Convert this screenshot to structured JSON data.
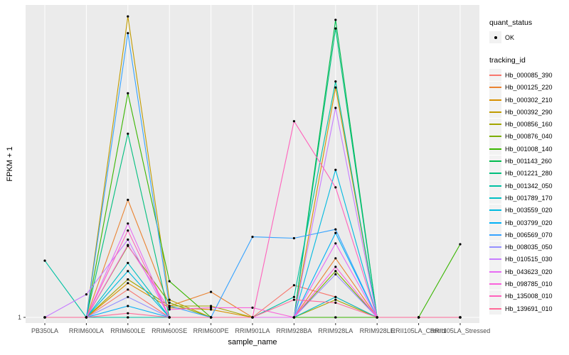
{
  "figure": {
    "y_axis": {
      "title": "FPKM + 1",
      "tick_labels": [
        "1"
      ]
    },
    "x_axis": {
      "title": "sample_name"
    },
    "legend": {
      "quant_title": "quant_status",
      "quant_items": [
        {
          "label": "OK"
        }
      ],
      "tracking_title": "tracking_id"
    },
    "colors": {
      "panel_bg": "#EBEBEB",
      "gridline": "#FFFFFF",
      "tick_mark": "#333333",
      "tick_text": "#4D4D4D",
      "legend_key_bg": "#F2F2F2",
      "point": "#000000"
    }
  },
  "chart_data": {
    "type": "line",
    "title": "",
    "xlabel": "sample_name",
    "ylabel": "FPKM + 1",
    "y_scale": "log10",
    "ylim": [
      1,
      1100
    ],
    "grid": "vertical-major-and-baseline",
    "legend_position": "right",
    "marker": "small-black-point",
    "categories": [
      "PB350LA",
      "RRIM600LA",
      "RRIM600LE",
      "RRIM600SE",
      "RRIM600PE",
      "RRIM901LA",
      "RRIM928BA",
      "RRIM928LA",
      "RRIM928LE",
      "RRII105LA_Control",
      "RRII105LA_Stressed"
    ],
    "series": [
      {
        "name": "Hb_000085_390",
        "color": "#F8766D",
        "values": [
          1,
          1,
          1.9,
          1,
          1,
          1,
          2.1,
          1.6,
          1,
          1,
          1
        ]
      },
      {
        "name": "Hb_000125_220",
        "color": "#EA8331",
        "values": [
          1,
          1,
          15,
          1.3,
          1.8,
          1,
          1,
          3.9,
          1,
          1,
          1
        ]
      },
      {
        "name": "Hb_000302_210",
        "color": "#D89000",
        "values": [
          1,
          1,
          2.2,
          1.25,
          1.2,
          1,
          1,
          200,
          1,
          1,
          1
        ]
      },
      {
        "name": "Hb_000392_290",
        "color": "#C09B00",
        "values": [
          1,
          1,
          1030,
          1.5,
          1,
          1,
          1,
          1,
          1,
          1,
          1
        ]
      },
      {
        "name": "Hb_000856_160",
        "color": "#A3A500",
        "values": [
          1,
          1,
          2.4,
          1.3,
          1.3,
          1,
          1,
          1.5,
          1,
          1,
          1
        ]
      },
      {
        "name": "Hb_000876_040",
        "color": "#7CAE00",
        "values": [
          1,
          1,
          5.2,
          1.4,
          1,
          1,
          1,
          2.9,
          1,
          1,
          1
        ]
      },
      {
        "name": "Hb_001008_140",
        "color": "#39B600",
        "values": [
          1,
          1,
          175,
          2.3,
          1,
          1,
          1,
          1,
          1,
          1,
          5.4
        ]
      },
      {
        "name": "Hb_001143_260",
        "color": "#00BB4E",
        "values": [
          1,
          1,
          1,
          1,
          1,
          1,
          1,
          950,
          1,
          1,
          1
        ]
      },
      {
        "name": "Hb_001221_280",
        "color": "#00BF7D",
        "values": [
          1,
          1,
          69,
          1,
          1,
          1,
          1,
          780,
          1,
          1,
          1
        ]
      },
      {
        "name": "Hb_001342_050",
        "color": "#00C1A3",
        "values": [
          3.7,
          1,
          1,
          1,
          1,
          1,
          1.6,
          230,
          1,
          1,
          1
        ]
      },
      {
        "name": "Hb_001789_170",
        "color": "#00BFC4",
        "values": [
          1,
          1,
          3.5,
          1,
          1,
          1,
          1,
          1.6,
          1,
          1,
          1
        ]
      },
      {
        "name": "Hb_003559_020",
        "color": "#00BAE0",
        "values": [
          1,
          1,
          2.9,
          1,
          1,
          1,
          1,
          30,
          1,
          1,
          1
        ]
      },
      {
        "name": "Hb_003799_020",
        "color": "#00B0F6",
        "values": [
          1,
          1,
          1.3,
          1,
          1,
          1,
          1,
          7.0,
          1,
          1,
          1
        ]
      },
      {
        "name": "Hb_006569_070",
        "color": "#35A2FF",
        "values": [
          1,
          1,
          700,
          1.3,
          1,
          6.4,
          6.2,
          7.6,
          1,
          1,
          1
        ]
      },
      {
        "name": "Hb_008035_050",
        "color": "#9590FF",
        "values": [
          1,
          1,
          1.6,
          1,
          1,
          1,
          1,
          2.7,
          1,
          1,
          1
        ]
      },
      {
        "name": "Hb_010515_030",
        "color": "#C77CFF",
        "values": [
          1,
          1.7,
          6,
          1,
          1,
          1,
          1,
          125,
          1,
          1,
          1
        ]
      },
      {
        "name": "Hb_043623_020",
        "color": "#E76BF3",
        "values": [
          1,
          1,
          8.7,
          1,
          1,
          1,
          1,
          5.5,
          1,
          1,
          1
        ]
      },
      {
        "name": "Hb_098785_010",
        "color": "#FA62DB",
        "values": [
          1,
          1,
          5.3,
          1.2,
          1.25,
          1.25,
          1,
          3.2,
          1,
          1,
          1
        ]
      },
      {
        "name": "Hb_135008_010",
        "color": "#FF62BC",
        "values": [
          1,
          1,
          7.4,
          1,
          1,
          1,
          92,
          20,
          1,
          1,
          1
        ]
      },
      {
        "name": "Hb_139691_010",
        "color": "#FF6A98",
        "values": [
          1,
          1,
          1.1,
          1,
          1,
          1,
          1.5,
          1.4,
          1,
          1,
          1
        ]
      }
    ]
  }
}
